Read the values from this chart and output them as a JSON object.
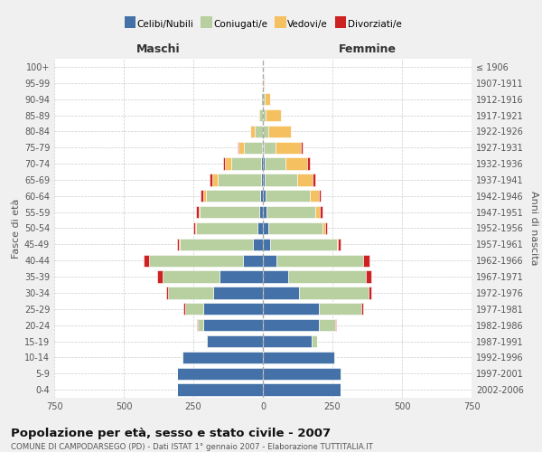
{
  "age_groups": [
    "0-4",
    "5-9",
    "10-14",
    "15-19",
    "20-24",
    "25-29",
    "30-34",
    "35-39",
    "40-44",
    "45-49",
    "50-54",
    "55-59",
    "60-64",
    "65-69",
    "70-74",
    "75-79",
    "80-84",
    "85-89",
    "90-94",
    "95-99",
    "100+"
  ],
  "birth_years": [
    "2002-2006",
    "1997-2001",
    "1992-1996",
    "1987-1991",
    "1982-1986",
    "1977-1981",
    "1972-1976",
    "1967-1971",
    "1962-1966",
    "1957-1961",
    "1952-1956",
    "1947-1951",
    "1942-1946",
    "1937-1941",
    "1932-1936",
    "1927-1931",
    "1922-1926",
    "1917-1921",
    "1912-1916",
    "1907-1911",
    "≤ 1906"
  ],
  "males": {
    "celibi": [
      310,
      310,
      290,
      200,
      215,
      215,
      180,
      155,
      70,
      35,
      20,
      12,
      10,
      8,
      5,
      2,
      0,
      0,
      0,
      0,
      0
    ],
    "coniugati": [
      0,
      0,
      2,
      5,
      20,
      65,
      160,
      205,
      340,
      265,
      220,
      215,
      195,
      155,
      110,
      65,
      30,
      12,
      5,
      2,
      0
    ],
    "vedovi": [
      0,
      0,
      0,
      0,
      0,
      0,
      0,
      0,
      0,
      2,
      3,
      5,
      10,
      18,
      20,
      20,
      15,
      5,
      2,
      0,
      0
    ],
    "divorziati": [
      0,
      0,
      0,
      0,
      2,
      5,
      8,
      20,
      20,
      8,
      8,
      8,
      8,
      10,
      8,
      5,
      2,
      0,
      0,
      0,
      0
    ]
  },
  "females": {
    "nubili": [
      280,
      280,
      255,
      175,
      200,
      200,
      130,
      90,
      50,
      25,
      18,
      12,
      10,
      8,
      5,
      2,
      0,
      0,
      0,
      0,
      0
    ],
    "coniugate": [
      0,
      2,
      5,
      20,
      60,
      155,
      250,
      280,
      310,
      240,
      195,
      175,
      160,
      115,
      75,
      45,
      20,
      10,
      5,
      2,
      0
    ],
    "vedove": [
      0,
      0,
      0,
      0,
      0,
      0,
      0,
      0,
      2,
      5,
      10,
      18,
      30,
      55,
      80,
      90,
      80,
      55,
      20,
      5,
      0
    ],
    "divorziate": [
      0,
      0,
      0,
      0,
      2,
      5,
      8,
      20,
      20,
      10,
      8,
      10,
      8,
      10,
      8,
      5,
      2,
      0,
      0,
      0,
      0
    ]
  },
  "colors": {
    "celibi_nubili": "#4472a8",
    "coniugati": "#b8cfa0",
    "vedovi": "#f5c060",
    "divorziati": "#cc2222"
  },
  "title": "Popolazione per età, sesso e stato civile - 2007",
  "subtitle": "COMUNE DI CAMPODARSEGO (PD) - Dati ISTAT 1° gennaio 2007 - Elaborazione TUTTITALIA.IT",
  "xlabel_left": "Maschi",
  "xlabel_right": "Femmine",
  "ylabel_left": "Fasce di età",
  "ylabel_right": "Anni di nascita",
  "xlim": 750,
  "legend_labels": [
    "Celibi/Nubili",
    "Coniugati/e",
    "Vedovi/e",
    "Divorziati/e"
  ],
  "bg_color": "#f0f0f0",
  "plot_bg_color": "#ffffff"
}
